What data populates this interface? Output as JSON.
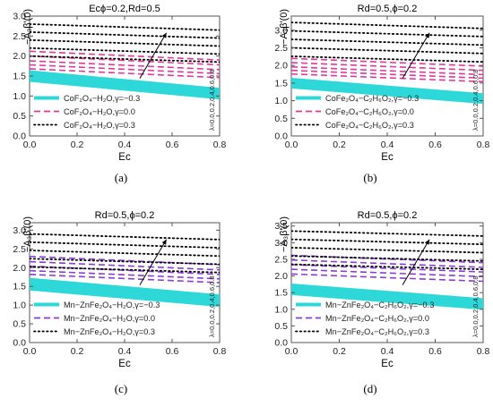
{
  "chart_data": [
    {
      "type": "line",
      "panel_label": "(a)",
      "title": "Ecϕ=0.2,Rd=0.5",
      "xlabel": "Ec",
      "ylabel": "−A₃β′(0)",
      "xlim": [
        0,
        0.8
      ],
      "ylim": [
        0,
        3.0
      ],
      "xticks": [
        "0.0",
        "0.2",
        "0.4",
        "0.6",
        "0.8"
      ],
      "yticks": [
        "0.0",
        "0.5",
        "1.0",
        "1.5",
        "2.0",
        "2.5",
        "3.0"
      ],
      "grid": false,
      "legend_position": "bottom-left",
      "annotation": "λ=0.0,0.2,0.4,0.6,0.8",
      "series": [
        {
          "name": "CoF₂O₄−H₂O,γ=−0.3",
          "style": "solid",
          "color": "#2ed8d8",
          "x": [
            0,
            0.8
          ],
          "lines": [
            [
              1.6,
              1.16
            ],
            [
              1.55,
              1.11
            ],
            [
              1.5,
              1.06
            ],
            [
              1.45,
              1.01
            ],
            [
              1.4,
              0.96
            ]
          ]
        },
        {
          "name": "CoF₂O₄−H₂O,γ=0.0",
          "style": "dashed",
          "color": "#e0389a",
          "x": [
            0,
            0.8
          ],
          "lines": [
            [
              2.12,
              1.9
            ],
            [
              2.0,
              1.78
            ],
            [
              1.88,
              1.66
            ],
            [
              1.78,
              1.56
            ],
            [
              1.68,
              1.46
            ]
          ]
        },
        {
          "name": "CoF₂O₄−H₂O,γ=0.3",
          "style": "dotted",
          "color": "#000000",
          "x": [
            0,
            0.8
          ],
          "lines": [
            [
              2.8,
              2.65
            ],
            [
              2.6,
              2.45
            ],
            [
              2.4,
              2.25
            ],
            [
              2.2,
              2.05
            ],
            [
              2.0,
              1.85
            ]
          ]
        }
      ]
    },
    {
      "type": "line",
      "panel_label": "(b)",
      "title": "Rd=0.5,ϕ=0.2",
      "xlabel": "Ec",
      "ylabel": "−A₃β′(0)",
      "xlim": [
        0,
        0.8
      ],
      "ylim": [
        0,
        3.4
      ],
      "xticks": [
        "0.0",
        "0.2",
        "0.4",
        "0.6",
        "0.8"
      ],
      "yticks": [
        "0.0",
        "0.5",
        "1.0",
        "1.5",
        "2.0",
        "2.5",
        "3.0"
      ],
      "grid": false,
      "legend_position": "bottom-left",
      "annotation": "λ=0.0,0.2,0.4,0.6,0.8",
      "series": [
        {
          "name": "CoFe₂O₄−C₂H₆O₂,γ=−0.3",
          "style": "solid",
          "color": "#2ed8d8",
          "x": [
            0,
            0.8
          ],
          "lines": [
            [
              1.6,
              1.16
            ],
            [
              1.55,
              1.11
            ],
            [
              1.5,
              1.06
            ],
            [
              1.45,
              1.01
            ],
            [
              1.4,
              0.96
            ]
          ]
        },
        {
          "name": "CoFe₂O₄−C₂H₆O₂,γ=0.0",
          "style": "dashed",
          "color": "#e0389a",
          "x": [
            0,
            0.8
          ],
          "lines": [
            [
              2.2,
              1.98
            ],
            [
              2.08,
              1.86
            ],
            [
              1.96,
              1.74
            ],
            [
              1.86,
              1.64
            ],
            [
              1.76,
              1.54
            ]
          ]
        },
        {
          "name": "CoFe₂O₄−C₂H₆O₂,γ=0.3",
          "style": "dotted",
          "color": "#000000",
          "x": [
            0,
            0.8
          ],
          "lines": [
            [
              3.22,
              3.05
            ],
            [
              2.98,
              2.82
            ],
            [
              2.74,
              2.58
            ],
            [
              2.5,
              2.34
            ],
            [
              2.26,
              2.1
            ]
          ]
        }
      ]
    },
    {
      "type": "line",
      "panel_label": "(c)",
      "title": "Rd=0.5,ϕ=0.2",
      "xlabel": "Ec",
      "ylabel": "−A₃β′(0)",
      "xlim": [
        0,
        0.8
      ],
      "ylim": [
        0,
        3.2
      ],
      "xticks": [
        "0.0",
        "0.2",
        "0.4",
        "0.6",
        "0.8"
      ],
      "yticks": [
        "0.0",
        "0.5",
        "1.0",
        "1.5",
        "2.0",
        "2.5",
        "3.0"
      ],
      "grid": false,
      "legend_position": "bottom-left",
      "annotation": "λ=0.0,0.2,0.4,0.6,0.8",
      "series": [
        {
          "name": "Mn−ZnFe₂O₄−H₂O,γ=−0.3",
          "style": "solid",
          "color": "#2ed8d8",
          "x": [
            0,
            0.8
          ],
          "lines": [
            [
              1.68,
              1.24
            ],
            [
              1.62,
              1.18
            ],
            [
              1.56,
              1.12
            ],
            [
              1.5,
              1.06
            ],
            [
              1.44,
              1.0
            ]
          ]
        },
        {
          "name": "Mn−ZnFe₂O₄−H₂O,γ=0.0",
          "style": "dashed",
          "color": "#8a3bd6",
          "x": [
            0,
            0.8
          ],
          "lines": [
            [
              2.3,
              2.08
            ],
            [
              2.16,
              1.94
            ],
            [
              2.04,
              1.82
            ],
            [
              1.92,
              1.7
            ],
            [
              1.82,
              1.6
            ]
          ]
        },
        {
          "name": "Mn−ZnFe₂O₄−H₂O,γ=0.3",
          "style": "dotted",
          "color": "#000000",
          "x": [
            0,
            0.8
          ],
          "lines": [
            [
              2.9,
              2.75
            ],
            [
              2.68,
              2.53
            ],
            [
              2.46,
              2.31
            ],
            [
              2.24,
              2.09
            ],
            [
              2.02,
              1.87
            ]
          ]
        }
      ]
    },
    {
      "type": "line",
      "panel_label": "(d)",
      "title": "Rd=0.5,ϕ=0.2",
      "xlabel": "Ec",
      "ylabel": "−A₃β′(0)",
      "xlim": [
        0,
        0.8
      ],
      "ylim": [
        0,
        3.6
      ],
      "xticks": [
        "0.0",
        "0.2",
        "0.4",
        "0.6",
        "0.8"
      ],
      "yticks": [
        "0.0",
        "0.5",
        "1.0",
        "1.5",
        "2.0",
        "2.5",
        "3.0",
        "3.5"
      ],
      "grid": false,
      "legend_position": "bottom-left",
      "annotation": "λ=0.0,0.2,0.4,0.6,0.8",
      "series": [
        {
          "name": "Mn−ZnFe₂O₄−C₂H₆O₂,γ=−0.3",
          "style": "solid",
          "color": "#2ed8d8",
          "x": [
            0,
            0.8
          ],
          "lines": [
            [
              1.72,
              1.28
            ],
            [
              1.66,
              1.22
            ],
            [
              1.6,
              1.16
            ],
            [
              1.54,
              1.1
            ],
            [
              1.48,
              1.04
            ]
          ]
        },
        {
          "name": "Mn−ZnFe₂O₄−C₂H₆O₂,γ=0.0",
          "style": "dashed",
          "color": "#8a3bd6",
          "x": [
            0,
            0.8
          ],
          "lines": [
            [
              2.62,
              2.4
            ],
            [
              2.48,
              2.26
            ],
            [
              2.34,
              2.12
            ],
            [
              2.2,
              1.98
            ],
            [
              2.06,
              1.84
            ]
          ]
        },
        {
          "name": "Mn−ZnFe₂O₄−C₂H₆O₂,γ=0.3",
          "style": "dotted",
          "color": "#000000",
          "x": [
            0,
            0.8
          ],
          "lines": [
            [
              3.35,
              3.2
            ],
            [
              3.1,
              2.95
            ],
            [
              2.85,
              2.7
            ],
            [
              2.6,
              2.45
            ],
            [
              2.35,
              2.2
            ]
          ]
        }
      ]
    }
  ]
}
